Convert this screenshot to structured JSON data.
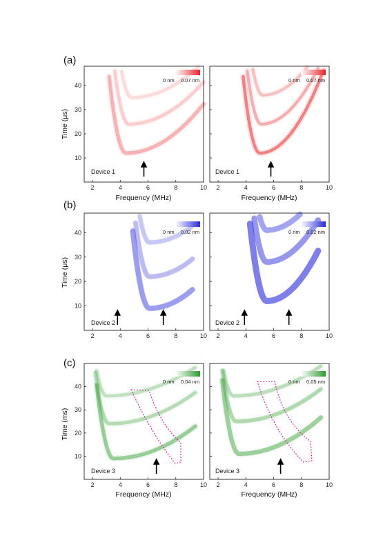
{
  "chart_data": {
    "type": "heatmap",
    "panel_labels": [
      "(a)",
      "(b)",
      "(c)"
    ],
    "rows": [
      {
        "label": "(a)",
        "ylabel": "Time (μs)",
        "xlabel": "Frequency (MHz)",
        "xlim": [
          1.4,
          10
        ],
        "ylim": [
          0,
          48
        ],
        "xticks": [
          2,
          4,
          6,
          8,
          10
        ],
        "yticks": [
          10,
          20,
          30,
          40
        ],
        "color": "#e8252a",
        "panels": [
          {
            "device": "Device 1",
            "cbar_min": "0 nm",
            "cbar_max": "0.07 nm",
            "arrows_x": [
              5.7
            ],
            "bands": [
              {
                "t0": 12,
                "fc": 4.4,
                "w": 0.55,
                "k": 2.6,
                "i": 0.55,
                "fmax": 10
              },
              {
                "t0": 24,
                "fc": 4.6,
                "w": 0.45,
                "k": 2.4,
                "i": 0.35,
                "fmax": 10
              },
              {
                "t0": 35,
                "fc": 4.8,
                "w": 0.4,
                "k": 2.2,
                "i": 0.25,
                "fmax": 10
              }
            ]
          },
          {
            "device": "Device 1",
            "cbar_min": "0 nm",
            "cbar_max": "0.07 nm",
            "arrows_x": [
              5.8
            ],
            "bands": [
              {
                "t0": 12,
                "fc": 5.0,
                "w": 0.35,
                "k": 6.5,
                "i": 0.95,
                "fmax": 9.6
              },
              {
                "t0": 24,
                "fc": 5.1,
                "w": 0.3,
                "k": 5.5,
                "i": 0.6,
                "fmax": 9.6
              },
              {
                "t0": 36,
                "fc": 5.2,
                "w": 0.3,
                "k": 4.5,
                "i": 0.45,
                "fmax": 9.6
              }
            ]
          }
        ]
      },
      {
        "label": "(b)",
        "ylabel": "Time (μs)",
        "xlabel": "Frequency (MHz)",
        "xlim": [
          1.4,
          10
        ],
        "ylim": [
          0,
          48
        ],
        "xticks": [
          2,
          4,
          6,
          8,
          10
        ],
        "yticks": [
          10,
          20,
          30,
          40
        ],
        "color": "#2b2bdc",
        "panels": [
          {
            "device": "Device 2",
            "cbar_min": "0 nm",
            "cbar_max": "0.02 nm",
            "arrows_x": [
              3.8,
              7.1
            ],
            "bands": [
              {
                "t0": 9,
                "fc": 6.1,
                "w": 1.1,
                "k": 3.2,
                "i": 0.75,
                "fmax": 9.2
              },
              {
                "t0": 22,
                "fc": 6.1,
                "w": 0.9,
                "k": 3.0,
                "i": 0.5,
                "fmax": 9.2
              },
              {
                "t0": 36,
                "fc": 6.1,
                "w": 0.8,
                "k": 2.8,
                "i": 0.4,
                "fmax": 9.2
              }
            ]
          },
          {
            "device": "Device 2",
            "cbar_min": "0 nm",
            "cbar_max": "0.02 nm",
            "arrows_x": [
              3.9,
              7.1
            ],
            "bands": [
              {
                "t0": 12,
                "fc": 5.5,
                "w": 1.5,
                "k": 6.0,
                "i": 1.0,
                "fmax": 9.2
              },
              {
                "t0": 28,
                "fc": 5.5,
                "w": 1.3,
                "k": 5.0,
                "i": 0.8,
                "fmax": 9.2
              },
              {
                "t0": 41,
                "fc": 5.5,
                "w": 1.2,
                "k": 4.5,
                "i": 0.7,
                "fmax": 9.2
              }
            ]
          }
        ]
      },
      {
        "label": "(c)",
        "ylabel": "Time (ms)",
        "xlabel": "Frequency (MHz)",
        "xlim": [
          1.4,
          10
        ],
        "ylim": [
          0,
          50
        ],
        "xticks": [
          2,
          4,
          6,
          8,
          10
        ],
        "yticks": [
          10,
          20,
          30,
          40
        ],
        "color": "#2e9a2e",
        "panels": [
          {
            "device": "Device 3",
            "cbar_min": "0 nm",
            "cbar_max": "0.04 nm",
            "arrows_x": [
              6.6
            ],
            "bands": [
              {
                "t0": 9,
                "fc": 3.5,
                "w": 0.6,
                "k": 1.6,
                "i": 0.8,
                "fmax": 9.4
              },
              {
                "t0": 24,
                "fc": 3.2,
                "w": 0.5,
                "k": 1.4,
                "i": 0.55,
                "fmax": 9.4
              },
              {
                "t0": 36,
                "fc": 3.0,
                "w": 0.45,
                "k": 1.2,
                "i": 0.45,
                "fmax": 9.4
              }
            ]
          },
          {
            "device": "Device 3",
            "cbar_min": "0 nm",
            "cbar_max": "0.05 nm",
            "arrows_x": [
              6.5
            ],
            "bands": [
              {
                "t0": 11,
                "fc": 3.5,
                "w": 0.8,
                "k": 1.8,
                "i": 0.75,
                "fmax": 9.4
              },
              {
                "t0": 25,
                "fc": 3.3,
                "w": 0.6,
                "k": 1.5,
                "i": 0.6,
                "fmax": 9.4
              },
              {
                "t0": 36,
                "fc": 3.1,
                "w": 0.5,
                "k": 1.3,
                "i": 0.5,
                "fmax": 9.4
              }
            ]
          }
        ]
      }
    ]
  }
}
